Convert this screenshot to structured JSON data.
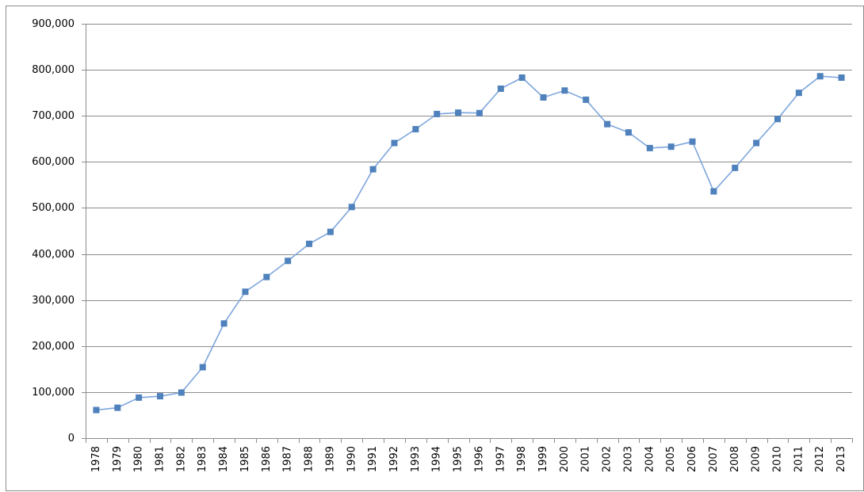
{
  "chart_data": {
    "type": "line",
    "categories": [
      "1978",
      "1979",
      "1980",
      "1981",
      "1982",
      "1983",
      "1984",
      "1985",
      "1986",
      "1987",
      "1988",
      "1989",
      "1990",
      "1991",
      "1992",
      "1993",
      "1994",
      "1995",
      "1996",
      "1997",
      "1998",
      "1999",
      "2000",
      "2001",
      "2002",
      "2003",
      "2004",
      "2005",
      "2006",
      "2007",
      "2008",
      "2009",
      "2010",
      "2011",
      "2012",
      "2013"
    ],
    "values": [
      61000,
      66000,
      88000,
      91000,
      99000,
      154000,
      249000,
      318000,
      350000,
      385000,
      422000,
      448000,
      502000,
      584000,
      641000,
      671000,
      704000,
      707000,
      706000,
      759000,
      783000,
      740000,
      755000,
      735000,
      682000,
      664000,
      630000,
      633000,
      644000,
      536000,
      587000,
      641000,
      693000,
      750000,
      786000,
      783000
    ],
    "color": "#7ea6dc",
    "marker_color": "#4f81bd",
    "marker": "square",
    "ylim": [
      0,
      900000
    ],
    "yticks": [
      0,
      {
        "value": 100000,
        "label": "100,000"
      },
      {
        "value": 200000,
        "label": "200,000"
      },
      {
        "value": 300000,
        "label": "300,000"
      },
      {
        "value": 400000,
        "label": "400,000"
      },
      {
        "value": 500000,
        "label": "500,000"
      },
      {
        "value": 600000,
        "label": "600,000"
      },
      {
        "value": 700000,
        "label": "700,000"
      },
      {
        "value": 800000,
        "label": "800,000"
      },
      {
        "value": 900000,
        "label": "900,000"
      }
    ],
    "grid": true
  }
}
